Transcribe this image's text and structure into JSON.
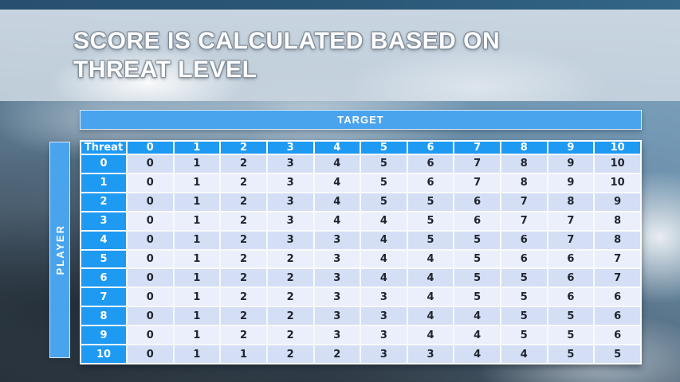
{
  "slide": {
    "title_line1": "SCORE IS CALCULATED BASED ON",
    "title_line2": "THREAT LEVEL"
  },
  "matrix": {
    "target_label": "TARGET",
    "player_label": "PLAYER",
    "corner_label": "Threat",
    "column_headers": [
      "0",
      "1",
      "2",
      "3",
      "4",
      "5",
      "6",
      "7",
      "8",
      "9",
      "10"
    ],
    "rows": [
      {
        "label": "0",
        "values": [
          "0",
          "1",
          "2",
          "3",
          "4",
          "5",
          "6",
          "7",
          "8",
          "9",
          "10"
        ]
      },
      {
        "label": "1",
        "values": [
          "0",
          "1",
          "2",
          "3",
          "4",
          "5",
          "6",
          "7",
          "8",
          "9",
          "10"
        ]
      },
      {
        "label": "2",
        "values": [
          "0",
          "1",
          "2",
          "3",
          "4",
          "5",
          "5",
          "6",
          "7",
          "8",
          "9"
        ]
      },
      {
        "label": "3",
        "values": [
          "0",
          "1",
          "2",
          "3",
          "4",
          "4",
          "5",
          "6",
          "7",
          "7",
          "8"
        ]
      },
      {
        "label": "4",
        "values": [
          "0",
          "1",
          "2",
          "3",
          "3",
          "4",
          "5",
          "5",
          "6",
          "7",
          "8"
        ]
      },
      {
        "label": "5",
        "values": [
          "0",
          "1",
          "2",
          "2",
          "3",
          "4",
          "4",
          "5",
          "6",
          "6",
          "7"
        ]
      },
      {
        "label": "6",
        "values": [
          "0",
          "1",
          "2",
          "2",
          "3",
          "4",
          "4",
          "5",
          "5",
          "6",
          "7"
        ]
      },
      {
        "label": "7",
        "values": [
          "0",
          "1",
          "2",
          "2",
          "3",
          "3",
          "4",
          "5",
          "5",
          "6",
          "6"
        ]
      },
      {
        "label": "8",
        "values": [
          "0",
          "1",
          "2",
          "2",
          "3",
          "3",
          "4",
          "4",
          "5",
          "5",
          "6"
        ]
      },
      {
        "label": "9",
        "values": [
          "0",
          "1",
          "2",
          "2",
          "3",
          "3",
          "4",
          "4",
          "5",
          "5",
          "6"
        ]
      },
      {
        "label": "10",
        "values": [
          "0",
          "1",
          "1",
          "2",
          "2",
          "3",
          "3",
          "4",
          "4",
          "5",
          "5"
        ]
      }
    ]
  },
  "colors": {
    "header_cell_blue": "#1e9af3",
    "band_blue": "#4aa3ed",
    "stripe_dark": "#d4dff6",
    "stripe_light": "#eaeffb",
    "top_banner_navy": "#2b5877",
    "cell_text": "#20242e"
  }
}
